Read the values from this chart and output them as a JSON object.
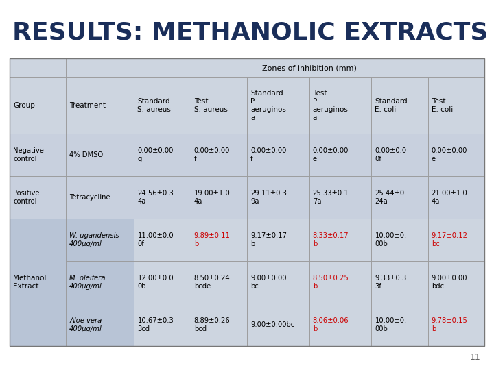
{
  "title": "RESULTS: METHANOLIC EXTRACTS",
  "title_color": "#1a2e5a",
  "page_number": "11",
  "background_color": "#ffffff",
  "header_bg": "#cdd5e0",
  "neg_pos_bg": "#c8d0de",
  "methanol_left_bg": "#b8c4d6",
  "methanol_right_bg": "#cdd5e0",
  "white_bg": "#ffffff",
  "zones_header": "Zones of inhibition (mm)",
  "rows": [
    {
      "group": "Negative\ncontrol",
      "treatment": "4% DMSO",
      "std_sa": "0.00±0.00\ng",
      "test_sa": "0.00±0.00\nf",
      "std_pa": "0.00±0.00\nf",
      "test_pa": "0.00±0.00\ne",
      "std_ec": "0.00±0.0\n0f",
      "test_ec": "0.00±0.00\ne",
      "red_cols": [],
      "italic_treatment": false,
      "row_type": "neg_pos"
    },
    {
      "group": "Positive\ncontrol",
      "treatment": "Tetracycline",
      "std_sa": "24.56±0.3\n4a",
      "test_sa": "19.00±1.0\n4a",
      "std_pa": "29.11±0.3\n9a",
      "test_pa": "25.33±0.1\n7a",
      "std_ec": "25.44±0.\n24a",
      "test_ec": "21.00±1.0\n4a",
      "red_cols": [],
      "italic_treatment": false,
      "row_type": "neg_pos"
    },
    {
      "group": "Methanol\nExtract",
      "treatment": "W. ugandensis\n400µg/ml",
      "std_sa": "11.00±0.0\n0f",
      "test_sa": "9.89±0.11\nb",
      "std_pa": "9.17±0.17\nb",
      "test_pa": "8.33±0.17\nb",
      "std_ec": "10.00±0.\n00b",
      "test_ec": "9.17±0.12\nbc",
      "red_cols": [
        "test_sa",
        "test_pa",
        "test_ec"
      ],
      "italic_treatment": true,
      "row_type": "methanol"
    },
    {
      "group": "",
      "treatment": "M. oleifera\n400µg/ml",
      "std_sa": "12.00±0.0\n0b",
      "test_sa": "8.50±0.24\nbcde",
      "std_pa": "9.00±0.00\nbc",
      "test_pa": "8.50±0.25\nb",
      "std_ec": "9.33±0.3\n3f",
      "test_ec": "9.00±0.00\nbdc",
      "red_cols": [
        "test_pa"
      ],
      "italic_treatment": true,
      "row_type": "methanol"
    },
    {
      "group": "",
      "treatment": "Aloe vera\n400µg/ml",
      "std_sa": "10.67±0.3\n3cd",
      "test_sa": "8.89±0.26\nbcd",
      "std_pa": "9.00±0.00bc",
      "test_pa": "8.06±0.06\nb",
      "std_ec": "10.00±0.\n00b",
      "test_ec": "9.78±0.15\nb",
      "red_cols": [
        "test_pa",
        "test_ec"
      ],
      "italic_treatment": true,
      "row_type": "methanol"
    }
  ]
}
